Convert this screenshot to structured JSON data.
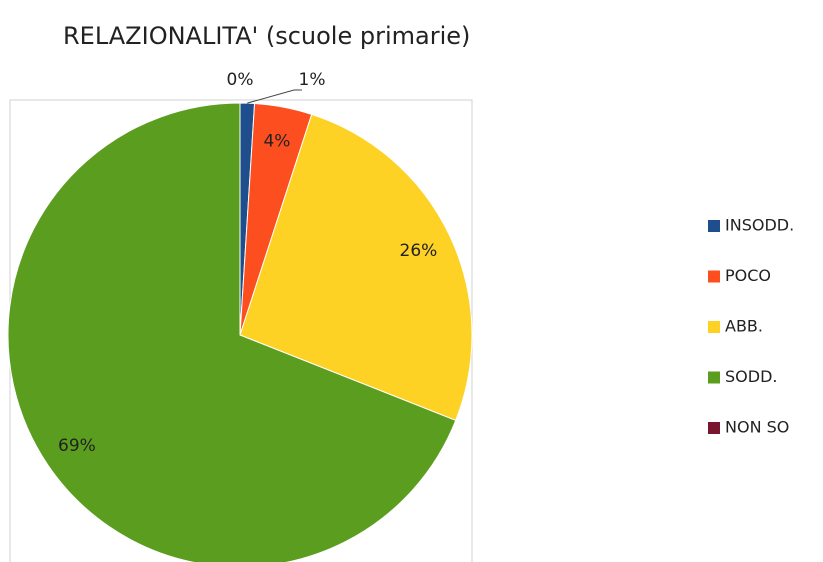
{
  "chart_data": {
    "type": "pie",
    "title": "RELAZIONALITA' (scuole primarie)",
    "categories": [
      "INSODD.",
      "POCO",
      "ABB.",
      "SODD.",
      "NON SO"
    ],
    "values": [
      1,
      4,
      26,
      69,
      0
    ],
    "value_labels": [
      "1%",
      "4%",
      "26%",
      "69%",
      "0%"
    ],
    "colors": [
      "#1f4e8c",
      "#fc4e1f",
      "#fdd224",
      "#5b9d1e",
      "#7a1530"
    ],
    "legend": "right"
  }
}
